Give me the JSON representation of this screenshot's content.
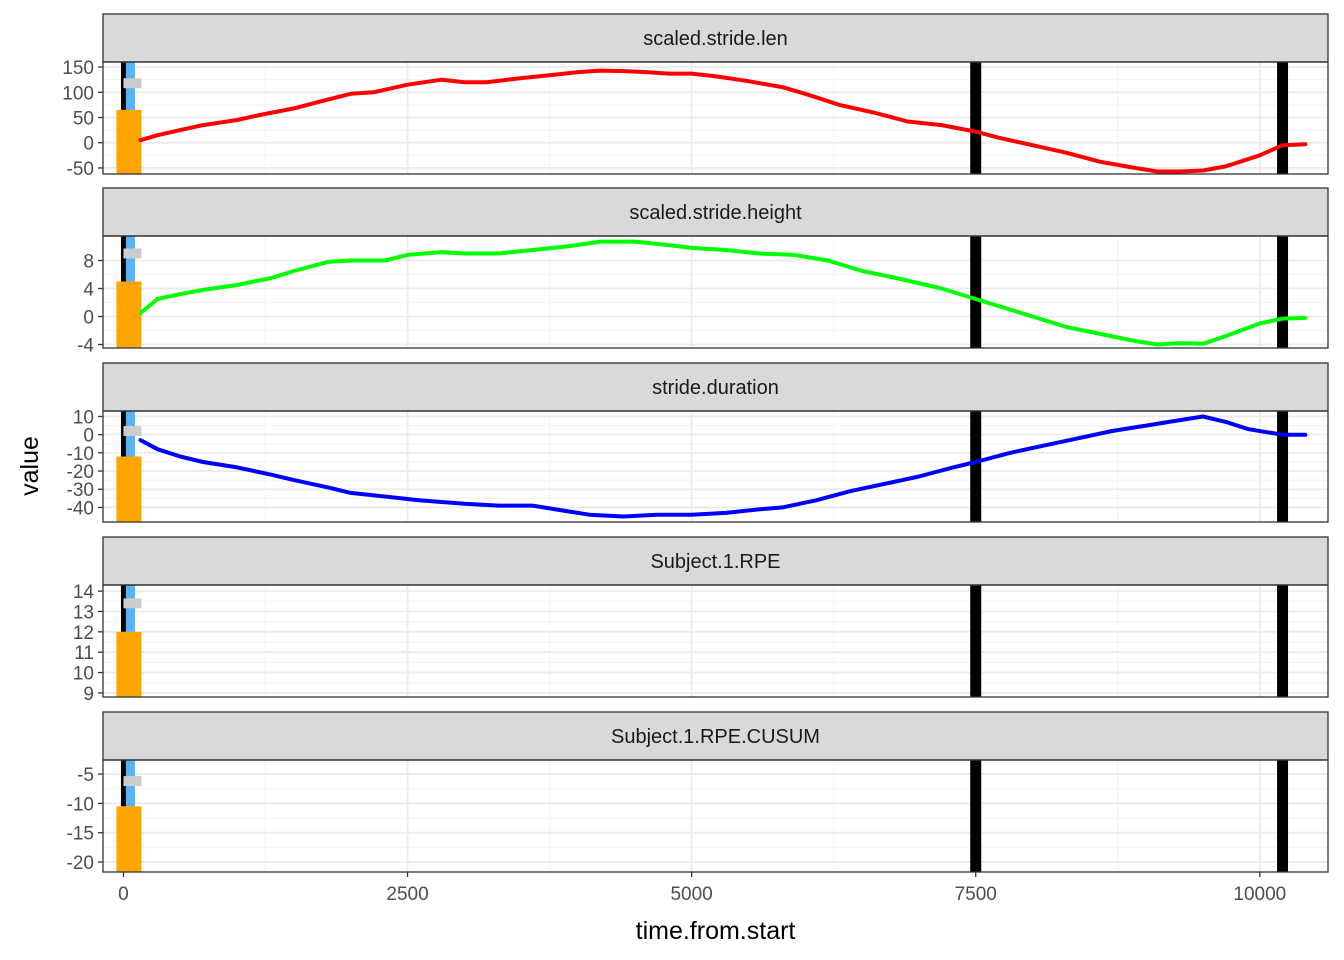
{
  "chart_data": {
    "type": "line",
    "layout": "faceted-vertical",
    "xlabel": "time.from.start",
    "ylabel": "value",
    "xlim": [
      -180,
      10600
    ],
    "x_ticks": [
      0,
      2500,
      5000,
      7500,
      10000
    ],
    "x_tick_labels": [
      "0",
      "2500",
      "5000",
      "7500",
      "10000"
    ],
    "grid": true,
    "colors": {
      "event_black": "#000000",
      "event_blue": "#56b4f9",
      "event_gray": "#cccccc",
      "event_orange": "#ffa500",
      "strip_fill": "#d9d9d9",
      "grid_major": "#ebebeb",
      "grid_minor": "#f5f5f5"
    },
    "vertical_lines": [
      0,
      7500,
      10200
    ],
    "facets": [
      {
        "name": "scaled.stride.len",
        "color": "#ff0000",
        "ylim": [
          -62,
          160
        ],
        "y_ticks": [
          150,
          100,
          50,
          0,
          -50
        ],
        "y_tick_labels": [
          "150",
          "100",
          "50",
          "0",
          "-50"
        ],
        "event_marks": {
          "blue_top": 160,
          "gray": 118,
          "orange_top": 65
        },
        "x": [
          150,
          300,
          500,
          700,
          1000,
          1200,
          1500,
          1700,
          2000,
          2200,
          2500,
          2800,
          3000,
          3200,
          3500,
          3800,
          4000,
          4200,
          4400,
          4600,
          4800,
          5000,
          5200,
          5500,
          5800,
          6000,
          6300,
          6600,
          6900,
          7200,
          7500,
          7700,
          8000,
          8300,
          8600,
          8900,
          9100,
          9300,
          9500,
          9700,
          10000,
          10200,
          10400
        ],
        "y": [
          5,
          15,
          25,
          35,
          45,
          55,
          68,
          80,
          97,
          100,
          115,
          125,
          120,
          120,
          128,
          135,
          140,
          143,
          142,
          140,
          137,
          137,
          132,
          122,
          110,
          97,
          75,
          60,
          42,
          35,
          22,
          10,
          -5,
          -20,
          -38,
          -50,
          -57,
          -57,
          -55,
          -47,
          -25,
          -5,
          -3
        ]
      },
      {
        "name": "scaled.stride.height",
        "color": "#00ff00",
        "ylim": [
          -4.5,
          11.5
        ],
        "y_ticks": [
          8,
          4,
          0,
          -4
        ],
        "y_tick_labels": [
          "8",
          "4",
          "0",
          "-4"
        ],
        "event_marks": {
          "blue_top": 11.5,
          "gray": 9,
          "orange_top": 5
        },
        "x": [
          150,
          300,
          500,
          700,
          1000,
          1300,
          1500,
          1800,
          2000,
          2300,
          2500,
          2800,
          3000,
          3300,
          3600,
          3900,
          4200,
          4500,
          4800,
          5000,
          5300,
          5600,
          5900,
          6200,
          6500,
          6800,
          7200,
          7500,
          7700,
          8000,
          8300,
          8600,
          8900,
          9100,
          9300,
          9500,
          9700,
          10000,
          10200,
          10400
        ],
        "y": [
          0.5,
          2.5,
          3.2,
          3.8,
          4.5,
          5.5,
          6.5,
          7.8,
          8.0,
          8.0,
          8.8,
          9.2,
          9.0,
          9.0,
          9.5,
          10.0,
          10.7,
          10.7,
          10.2,
          9.8,
          9.5,
          9.0,
          8.8,
          8.0,
          6.5,
          5.5,
          4.0,
          2.5,
          1.5,
          0.0,
          -1.5,
          -2.5,
          -3.5,
          -4.0,
          -3.8,
          -3.9,
          -2.8,
          -1.0,
          -0.3,
          -0.2
        ]
      },
      {
        "name": "stride.duration",
        "color": "#0000ff",
        "ylim": [
          -48,
          13
        ],
        "y_ticks": [
          10,
          0,
          -10,
          -20,
          -30,
          -40
        ],
        "y_tick_labels": [
          "10",
          "0",
          "-10",
          "-20",
          "-30",
          "-40"
        ],
        "event_marks": {
          "blue_top": 13,
          "gray": 2,
          "orange_top": -12
        },
        "x": [
          150,
          300,
          500,
          700,
          1000,
          1300,
          1500,
          1800,
          2000,
          2300,
          2600,
          2800,
          3000,
          3300,
          3600,
          3900,
          4100,
          4400,
          4700,
          5000,
          5300,
          5600,
          5800,
          6100,
          6400,
          6700,
          7000,
          7300,
          7500,
          7800,
          8100,
          8400,
          8700,
          9000,
          9200,
          9500,
          9700,
          9900,
          10200,
          10400
        ],
        "y": [
          -3,
          -8,
          -12,
          -15,
          -18,
          -22,
          -25,
          -29,
          -32,
          -34,
          -36,
          -37,
          -38,
          -39,
          -39,
          -42,
          -44,
          -45,
          -44,
          -44,
          -43,
          -41,
          -40,
          -36,
          -31,
          -27,
          -23,
          -18,
          -15,
          -10,
          -6,
          -2,
          2,
          5,
          7,
          10,
          7,
          3,
          0,
          0
        ]
      },
      {
        "name": "Subject.1.RPE",
        "color": "#000000",
        "ylim": [
          8.8,
          14.3
        ],
        "y_ticks": [
          14,
          13,
          12,
          11,
          10,
          9
        ],
        "y_tick_labels": [
          "14",
          "13",
          "12",
          "11",
          "10",
          "9"
        ],
        "event_marks": {
          "blue_top": 14.3,
          "gray": 13.4,
          "orange_top": 12
        },
        "x": [],
        "y": []
      },
      {
        "name": "Subject.1.RPE.CUSUM",
        "color": "#000000",
        "ylim": [
          -21.7,
          -2.6
        ],
        "y_ticks": [
          -5,
          -10,
          -15,
          -20
        ],
        "y_tick_labels": [
          "-5",
          "-10",
          "-15",
          "-20"
        ],
        "event_marks": {
          "blue_top": -2.6,
          "gray": -6.2,
          "orange_top": -10.5
        },
        "x": [],
        "y": []
      }
    ]
  }
}
